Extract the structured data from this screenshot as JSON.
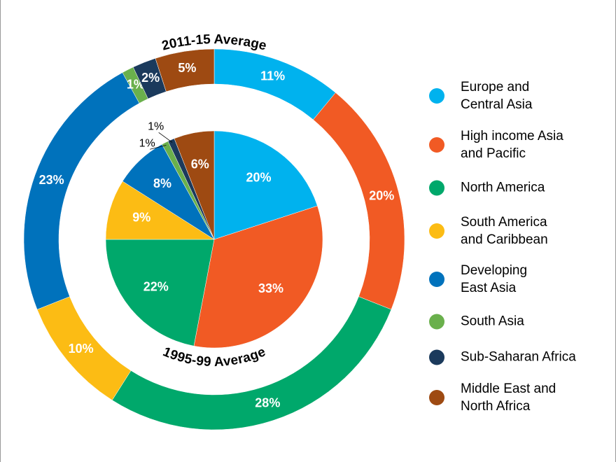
{
  "chart_data": {
    "type": "pie",
    "categories": [
      "Europe and\nCentral Asia",
      "High income Asia\nand Pacific",
      "North America",
      "South America\nand Caribbean",
      "Developing\nEast Asia",
      "South Asia",
      "Sub-Saharan Africa",
      "Middle East and\nNorth Africa"
    ],
    "colors": [
      "#00b2ee",
      "#f15a24",
      "#00a86b",
      "#fcbc14",
      "#0072bc",
      "#6ab04c",
      "#1b3a5c",
      "#9e4a12"
    ],
    "series": [
      {
        "name": "2011-15 Average",
        "values": [
          11,
          20,
          28,
          10,
          23,
          1,
          2,
          5
        ],
        "value_labels": [
          "11%",
          "20%",
          "28%",
          "10%",
          "23%",
          "1%",
          "2%",
          "5%"
        ]
      },
      {
        "name": "1995-99 Average",
        "values": [
          20,
          33,
          22,
          9,
          8,
          1,
          1,
          6
        ],
        "value_labels": [
          "20%",
          "33%",
          "22%",
          "9%",
          "8%",
          "1%",
          "1%",
          "6%"
        ]
      }
    ],
    "legend": "right"
  }
}
